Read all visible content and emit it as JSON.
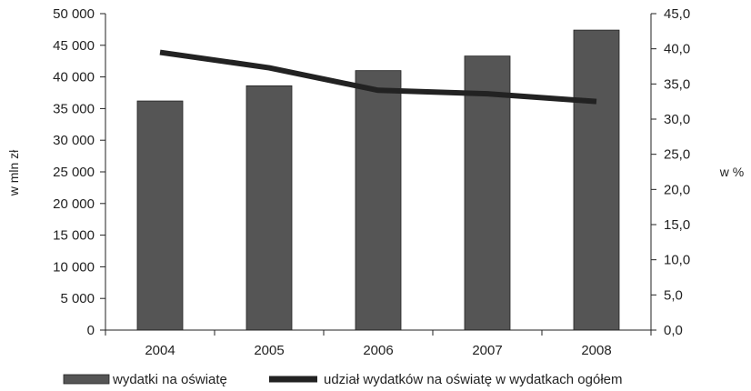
{
  "chart_data": {
    "type": "bar",
    "categories": [
      "2004",
      "2005",
      "2006",
      "2007",
      "2008"
    ],
    "series": [
      {
        "name": "wydatki na oświatę",
        "type": "bar",
        "axis": "left",
        "values": [
          36200,
          38600,
          41000,
          43300,
          47400
        ],
        "color": "#555555"
      },
      {
        "name": "udział wydatków na oświatę w wydatkach ogółem",
        "type": "line",
        "axis": "right",
        "values": [
          39.5,
          37.3,
          34.1,
          33.6,
          32.5
        ],
        "color": "#222222"
      }
    ],
    "ylabel": "w mln zł",
    "y2label": "w %",
    "ylim": [
      0,
      50000
    ],
    "y2lim": [
      0,
      45
    ],
    "yticks": [
      "0",
      "5 000",
      "10 000",
      "15 000",
      "20 000",
      "25 000",
      "30 000",
      "35 000",
      "40 000",
      "45 000",
      "50 000"
    ],
    "y2ticks": [
      "0,0",
      "5,0",
      "10,0",
      "15,0",
      "20,0",
      "25,0",
      "30,0",
      "35,0",
      "40,0",
      "45,0"
    ],
    "grid": false,
    "legend_position": "bottom"
  }
}
